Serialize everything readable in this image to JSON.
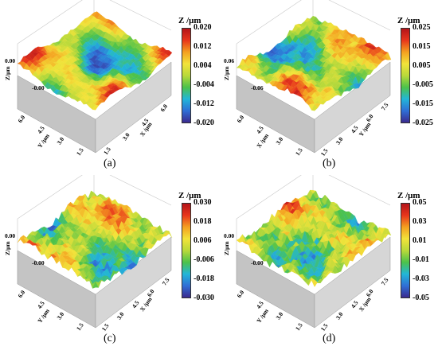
{
  "chart_data": [
    {
      "type": "surface",
      "panel_label": "(a)",
      "colorbar": {
        "title": "Z /μm",
        "ticks": [
          "0.020",
          "0.012",
          "0.004",
          "-0.004",
          "-0.012",
          "-0.020"
        ],
        "range": [
          -0.02,
          0.02
        ]
      },
      "z_tick_labels": [
        "0.00",
        "-0.00"
      ],
      "z_axis_label": "Z/μm",
      "axis_left": {
        "label": "Y /μm",
        "ticks": [
          "6.0",
          "4.5",
          "3.0",
          "1.5"
        ]
      },
      "axis_right": {
        "label": "X /μm",
        "ticks": [
          "1.5",
          "3.0",
          "4.5",
          "6.0"
        ]
      },
      "roughness": 0.35
    },
    {
      "type": "surface",
      "panel_label": "(b)",
      "colorbar": {
        "title": "Z /μm",
        "ticks": [
          "0.025",
          "0.015",
          "0.005",
          "-0.005",
          "-0.015",
          "-0.025"
        ],
        "range": [
          -0.025,
          0.025
        ]
      },
      "z_tick_labels": [
        "0.06",
        "-0.06"
      ],
      "z_axis_label": "Z/μm",
      "axis_left": {
        "label": "X /μm",
        "ticks": [
          "6.0",
          "4.5",
          "3.0",
          "1.5"
        ]
      },
      "axis_right": {
        "label": "Y /μm",
        "ticks": [
          "1.5",
          "3.0",
          "4.5",
          "6.0",
          "7.5"
        ]
      },
      "roughness": 0.5
    },
    {
      "type": "surface",
      "panel_label": "(c)",
      "colorbar": {
        "title": "Z /μm",
        "ticks": [
          "0.030",
          "0.018",
          "0.006",
          "-0.006",
          "-0.018",
          "-0.030"
        ],
        "range": [
          -0.03,
          0.03
        ]
      },
      "z_tick_labels": [
        "0.00",
        "-0.00"
      ],
      "z_axis_label": "Z/μm",
      "axis_left": {
        "label": "Y /μm",
        "ticks": [
          "6.0",
          "4.5",
          "3.0",
          "1.5"
        ]
      },
      "axis_right": {
        "label": "X /μm",
        "ticks": [
          "1.5",
          "3.0",
          "4.5",
          "6.0",
          "7.5"
        ]
      },
      "roughness": 0.7
    },
    {
      "type": "surface",
      "panel_label": "(d)",
      "colorbar": {
        "title": "Z /μm",
        "ticks": [
          "0.05",
          "0.03",
          "0.01",
          "-0.01",
          "-0.03",
          "-0.05"
        ],
        "range": [
          -0.05,
          0.05
        ]
      },
      "z_tick_labels": [
        "0.00",
        "-0.00"
      ],
      "z_axis_label": "Z/μm",
      "axis_left": {
        "label": "Y /μm",
        "ticks": [
          "6.0",
          "4.5",
          "3.0",
          "1.5"
        ]
      },
      "axis_right": {
        "label": "X /μm",
        "ticks": [
          "1.5",
          "3.0",
          "4.5",
          "6.0",
          "7.5"
        ]
      },
      "roughness": 0.85
    }
  ],
  "colormap": [
    "#3b2a8f",
    "#2f6fd6",
    "#22b6d8",
    "#4cc24a",
    "#b9d93a",
    "#f2e33a",
    "#f4a020",
    "#e8361c",
    "#b4141a"
  ]
}
